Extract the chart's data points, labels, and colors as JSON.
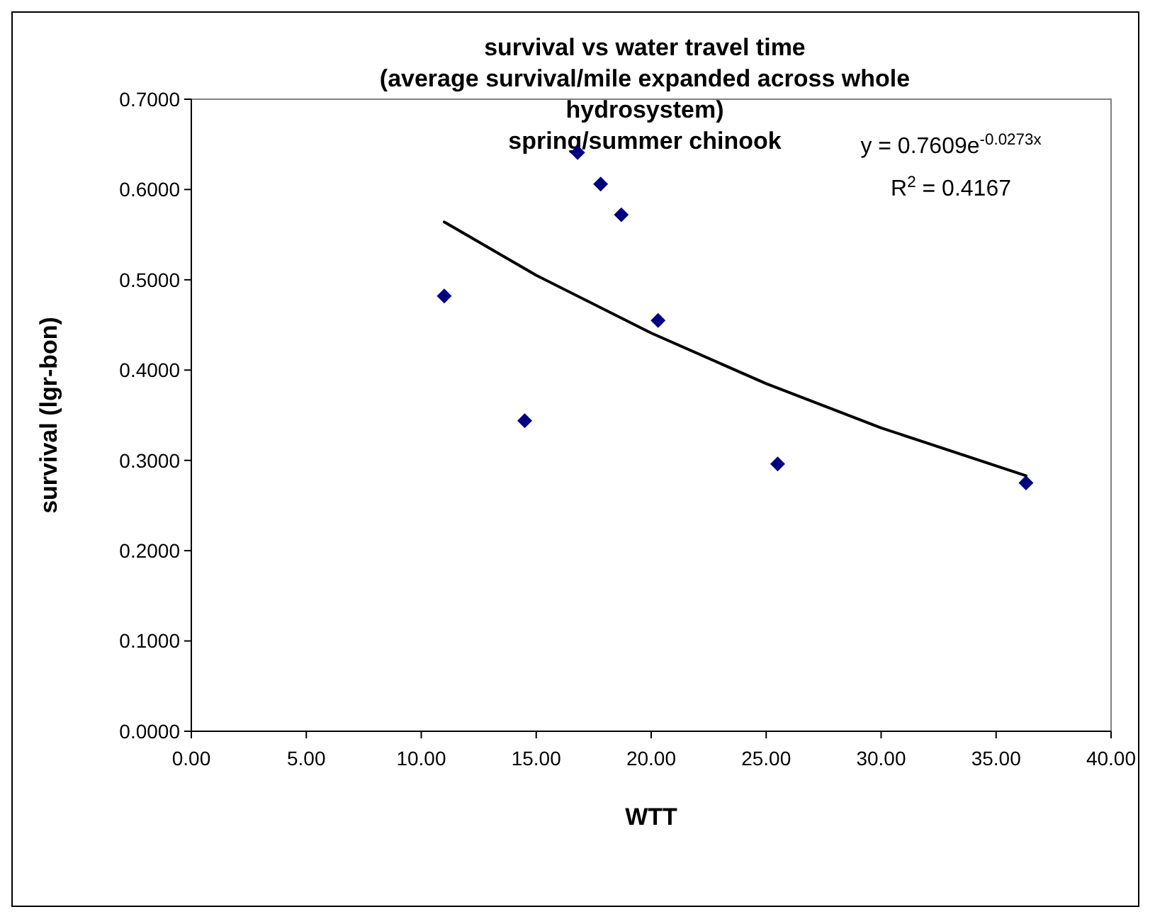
{
  "chart_data": {
    "type": "scatter",
    "title": "survival vs water travel time\n(average survival/mile expanded across whole\nhydrosystem)\nspring/summer chinook",
    "xlabel": "WTT",
    "ylabel": "survival (lgr-bon)",
    "xlim": [
      0,
      40
    ],
    "ylim": [
      0,
      0.7
    ],
    "xticks": [
      {
        "value": 0,
        "label": "0.00"
      },
      {
        "value": 5,
        "label": "5.00"
      },
      {
        "value": 10,
        "label": "10.00"
      },
      {
        "value": 15,
        "label": "15.00"
      },
      {
        "value": 20,
        "label": "20.00"
      },
      {
        "value": 25,
        "label": "25.00"
      },
      {
        "value": 30,
        "label": "30.00"
      },
      {
        "value": 35,
        "label": "35.00"
      },
      {
        "value": 40,
        "label": "40.00"
      }
    ],
    "yticks": [
      {
        "value": 0,
        "label": "0.0000"
      },
      {
        "value": 0.1,
        "label": "0.1000"
      },
      {
        "value": 0.2,
        "label": "0.2000"
      },
      {
        "value": 0.3,
        "label": "0.3000"
      },
      {
        "value": 0.4,
        "label": "0.4000"
      },
      {
        "value": 0.5,
        "label": "0.5000"
      },
      {
        "value": 0.6,
        "label": "0.6000"
      },
      {
        "value": 0.7,
        "label": "0.7000"
      }
    ],
    "grid": false,
    "series": [
      {
        "color": "#000080",
        "marker": "diamond",
        "x": [
          11.0,
          14.5,
          16.8,
          17.8,
          18.7,
          20.3,
          25.5,
          36.3
        ],
        "values": [
          0.482,
          0.344,
          0.641,
          0.606,
          0.572,
          0.455,
          0.296,
          0.275
        ]
      },
      {
        "type": "line",
        "color": "#000000",
        "marker": "none",
        "line_style": "solid",
        "x": [
          11,
          15,
          20,
          25,
          30,
          36.3
        ],
        "values": [
          0.564,
          0.505,
          0.441,
          0.385,
          0.336,
          0.283
        ]
      }
    ],
    "annotations": [
      "y = 0.7609e$^{-0.0273x}$",
      "R$^{2}$ = 0.4167"
    ]
  }
}
